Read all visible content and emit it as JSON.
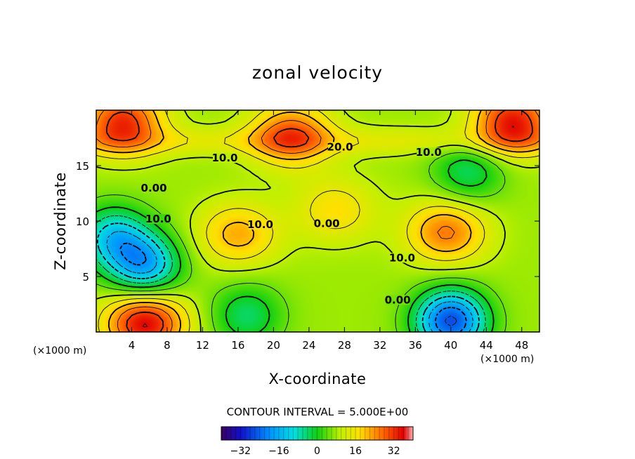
{
  "chart_data": {
    "type": "heatmap",
    "title": "zonal velocity",
    "xlabel": "X-coordinate",
    "ylabel": "Z-coordinate",
    "x_units": "(×1000 m)",
    "z_units": "(×1000 m)",
    "xlim": [
      0,
      50
    ],
    "ylim": [
      0,
      20
    ],
    "x_ticks": [
      4,
      8,
      12,
      16,
      20,
      24,
      28,
      32,
      36,
      40,
      44,
      48
    ],
    "y_ticks": [
      5,
      10,
      15
    ],
    "contour_interval_text": "CONTOUR INTERVAL = 5.000E+00",
    "colorbar": {
      "range": [
        -40,
        40
      ],
      "ticks": [
        "−32",
        "−16",
        "0",
        "16",
        "32"
      ]
    },
    "contour_labels": [
      {
        "text": "20.0",
        "x": 27.5,
        "y": 16.5
      },
      {
        "text": "10.0",
        "x": 14.5,
        "y": 15.5
      },
      {
        "text": "10.0",
        "x": 37.5,
        "y": 16.0
      },
      {
        "text": "0.00",
        "x": 6.5,
        "y": 12.8
      },
      {
        "text": "10.0",
        "x": 7.0,
        "y": 10.0
      },
      {
        "text": "10.0",
        "x": 18.5,
        "y": 9.5
      },
      {
        "text": "0.00",
        "x": 26.0,
        "y": 9.6
      },
      {
        "text": "10.0",
        "x": 34.5,
        "y": 6.5
      },
      {
        "text": "0.00",
        "x": 34.0,
        "y": 2.7
      }
    ],
    "features": [
      {
        "kind": "max",
        "x": 3,
        "y": 19,
        "value": 30
      },
      {
        "kind": "max",
        "x": 47,
        "y": 19,
        "value": 32
      },
      {
        "kind": "max",
        "x": 22,
        "y": 17.8,
        "value": 26
      },
      {
        "kind": "max",
        "x": 39.5,
        "y": 9,
        "value": 24
      },
      {
        "kind": "max",
        "x": 16,
        "y": 8.8,
        "value": 20
      },
      {
        "kind": "max",
        "x": 5.5,
        "y": 0.8,
        "value": 34
      },
      {
        "kind": "max",
        "x": 27,
        "y": 11,
        "value": 16
      },
      {
        "kind": "min",
        "x": 2,
        "y": 8.5,
        "value": -14
      },
      {
        "kind": "min",
        "x": 5.5,
        "y": 6.0,
        "value": -18
      },
      {
        "kind": "min",
        "x": 40,
        "y": 1.0,
        "value": -28
      },
      {
        "kind": "min",
        "x": 42,
        "y": 14.5,
        "value": -6
      },
      {
        "kind": "min",
        "x": 17,
        "y": 1.5,
        "value": -6
      }
    ]
  }
}
